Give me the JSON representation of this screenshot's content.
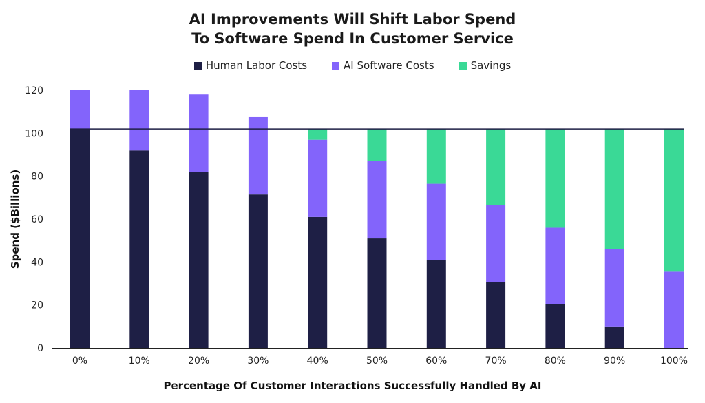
{
  "chart_data": {
    "type": "bar",
    "stacked": true,
    "title_lines": [
      "AI Improvements Will Shift Labor Spend",
      "To Software Spend In Customer Service"
    ],
    "xlabel": "Percentage Of Customer Interactions Successfully Handled By AI",
    "ylabel": "Spend ($Billions)",
    "ylim": [
      0,
      120
    ],
    "yticks": [
      0,
      20,
      40,
      60,
      80,
      100,
      120
    ],
    "grid": false,
    "legend_position": "top-center",
    "reference_line": 102,
    "categories": [
      "0%",
      "10%",
      "20%",
      "30%",
      "40%",
      "50%",
      "60%",
      "70%",
      "80%",
      "90%",
      "100%"
    ],
    "series": [
      {
        "name": "Human Labor Costs",
        "color": "#1e1f45",
        "values": [
          102,
          92,
          82,
          71.5,
          61,
          51,
          41,
          30.5,
          20.5,
          10,
          0
        ]
      },
      {
        "name": "AI Software Costs",
        "color": "#8364fb",
        "values": [
          18,
          28,
          36,
          36,
          36,
          36,
          35.5,
          36,
          35.5,
          36,
          35.5
        ]
      },
      {
        "name": "Savings",
        "color": "#3ad996",
        "values": [
          0,
          0,
          0,
          0,
          5,
          15,
          25.5,
          35.5,
          46,
          56,
          66.5
        ]
      }
    ]
  }
}
